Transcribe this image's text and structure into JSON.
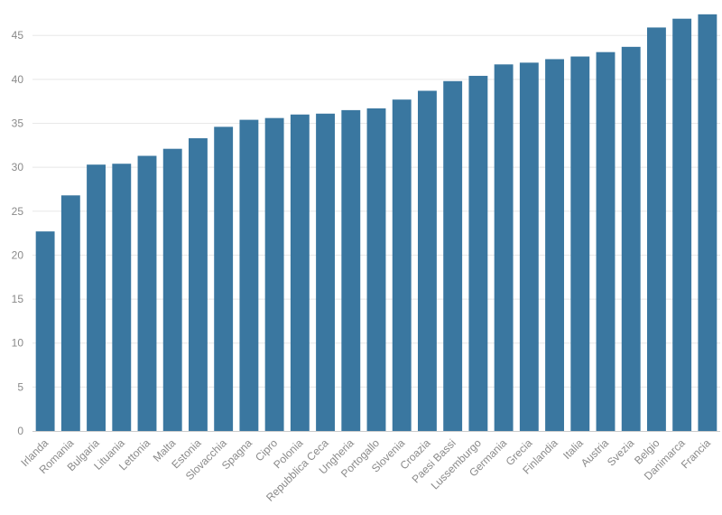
{
  "chart_data": {
    "type": "bar",
    "title": "",
    "xlabel": "",
    "ylabel": "",
    "ylim": [
      0,
      48
    ],
    "y_ticks": [
      0,
      5,
      10,
      15,
      20,
      25,
      30,
      35,
      40,
      45
    ],
    "grid": true,
    "bar_color": "#3a77a0",
    "categories": [
      "Irlanda",
      "Romania",
      "Bulgaria",
      "Lituania",
      "Lettonia",
      "Malta",
      "Estonia",
      "Slovacchia",
      "Spagna",
      "Cipro",
      "Polonia",
      "Repubblica Ceca",
      "Ungheria",
      "Portogallo",
      "Slovenia",
      "Croazia",
      "Paesi Bassi",
      "Lussemburgo",
      "Germania",
      "Grecia",
      "Finlandia",
      "Italia",
      "Austria",
      "Svezia",
      "Belgio",
      "Danimarca",
      "Francia"
    ],
    "values": [
      22.7,
      26.8,
      30.3,
      30.4,
      31.3,
      32.1,
      33.3,
      34.6,
      35.4,
      35.6,
      36.0,
      36.1,
      36.5,
      36.7,
      37.7,
      38.7,
      39.8,
      40.4,
      41.7,
      41.9,
      42.3,
      42.6,
      43.1,
      43.7,
      45.9,
      46.9,
      47.4
    ]
  }
}
